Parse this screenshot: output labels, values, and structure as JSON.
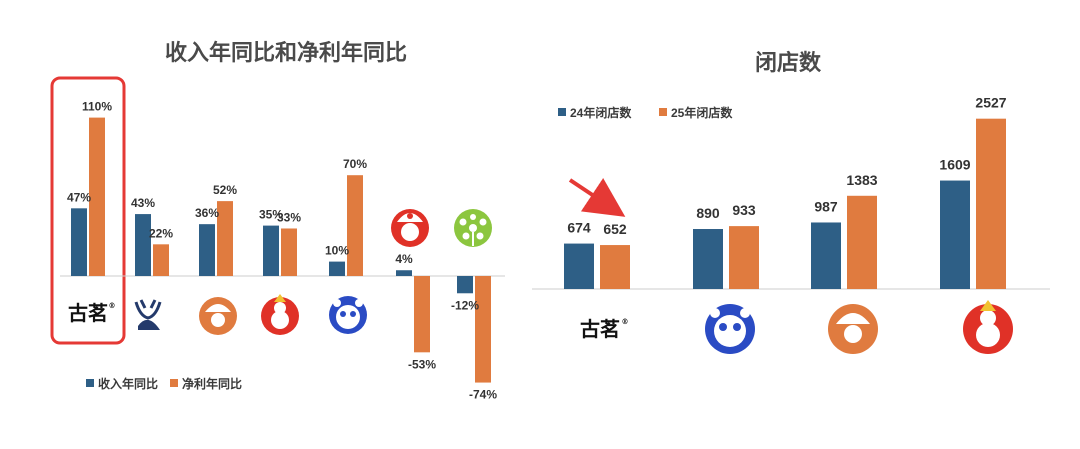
{
  "colors": {
    "blue": "#2e5f86",
    "orange": "#e07b3f",
    "highlight": "#e53935",
    "axis": "#cccccc"
  },
  "chart_data": [
    {
      "type": "bar",
      "title": "收入年同比和净利年同比",
      "categories": [
        "古茗",
        "霸王茶姬",
        "茶颜悦色",
        "蜜雪冰城",
        "茶百道",
        "奈雪的茶",
        "沪上阿姨"
      ],
      "category_icons": [
        "gu-ming-logo",
        "bawang-chaji-logo",
        "chayan-yuese-logo",
        "mixue-logo",
        "chabaidao-logo",
        "nayuki-logo",
        "hushang-ayi-logo"
      ],
      "series": [
        {
          "name": "收入年同比",
          "values": [
            47,
            43,
            36,
            35,
            10,
            4,
            -12
          ],
          "labels": [
            "47%",
            "43%",
            "36%",
            "35%",
            "10%",
            "4%",
            "-12%"
          ]
        },
        {
          "name": "净利年同比",
          "values": [
            110,
            22,
            52,
            33,
            70,
            -53,
            -74
          ],
          "labels": [
            "110%",
            "22%",
            "52%",
            "33%",
            "70%",
            "-53%",
            "-74%"
          ]
        }
      ],
      "highlight_category": "古茗",
      "legend_position": "bottom-left"
    },
    {
      "type": "bar",
      "title": "闭店数",
      "categories": [
        "古茗",
        "茶百道",
        "茶颜悦色",
        "蜜雪冰城"
      ],
      "category_icons": [
        "gu-ming-logo",
        "chabaidao-logo",
        "chayan-yuese-logo",
        "mixue-logo"
      ],
      "series": [
        {
          "name": "24年闭店数",
          "values": [
            674,
            890,
            987,
            1609
          ],
          "labels": [
            "674",
            "890",
            "987",
            "1609"
          ]
        },
        {
          "name": "25年闭店数",
          "values": [
            652,
            933,
            1383,
            2527
          ],
          "labels": [
            "652",
            "933",
            "1383",
            "2527"
          ]
        }
      ],
      "annotation": "red-arrow-pointing-to-652",
      "legend_position": "top-left"
    }
  ],
  "logo_text": {
    "gu_ming": "古茗",
    "registered": "®"
  }
}
